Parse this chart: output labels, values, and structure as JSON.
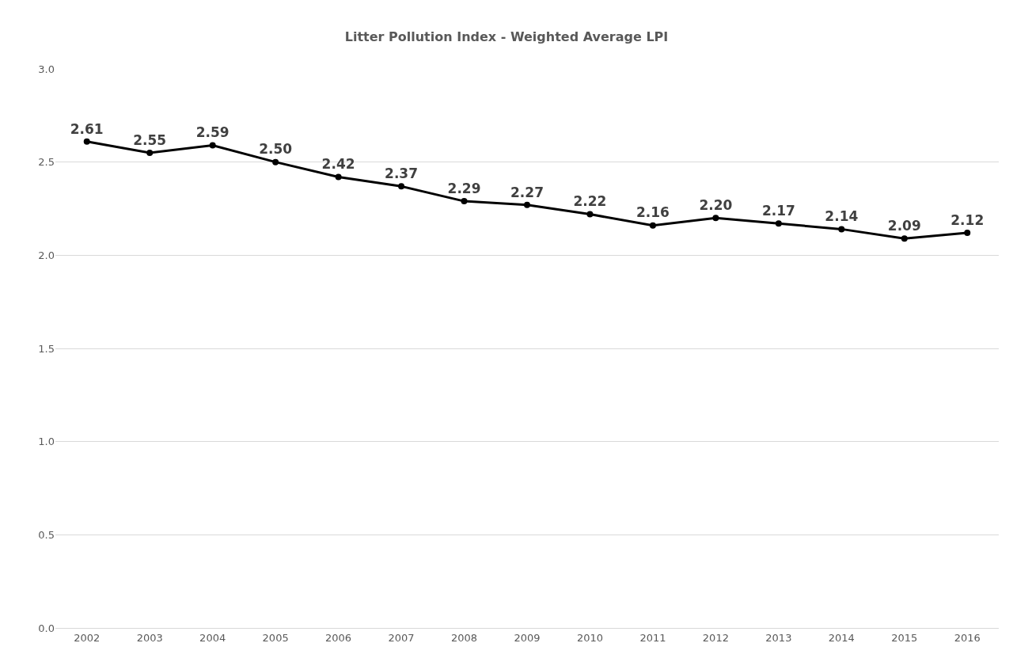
{
  "chart_data": {
    "type": "line",
    "title": "Litter Pollution Index - Weighted Average LPI",
    "categories": [
      "2002",
      "2003",
      "2004",
      "2005",
      "2006",
      "2007",
      "2008",
      "2009",
      "2010",
      "2011",
      "2012",
      "2013",
      "2014",
      "2015",
      "2016"
    ],
    "series": [
      {
        "color": "#000000",
        "values": [
          2.61,
          2.55,
          2.59,
          2.5,
          2.42,
          2.37,
          2.29,
          2.27,
          2.22,
          2.16,
          2.2,
          2.17,
          2.14,
          2.09,
          2.12
        ],
        "value_labels": [
          "2.61",
          "2.55",
          "2.59",
          "2.50",
          "2.42",
          "2.37",
          "2.29",
          "2.27",
          "2.22",
          "2.16",
          "2.20",
          "2.17",
          "2.14",
          "2.09",
          "2.12"
        ]
      }
    ],
    "ylim": [
      0,
      3
    ],
    "yticks": [
      {
        "value": 0,
        "label": "0.0"
      },
      {
        "value": 0.5,
        "label": "0.5"
      },
      {
        "value": 1,
        "label": "1.0"
      },
      {
        "value": 1.5,
        "label": "1.5"
      },
      {
        "value": 2,
        "label": "2.0"
      },
      {
        "value": 2.5,
        "label": "2.5"
      },
      {
        "value": 3,
        "label": "3.0"
      }
    ],
    "grid": "y",
    "marker": "circle",
    "line_style": "solid"
  }
}
